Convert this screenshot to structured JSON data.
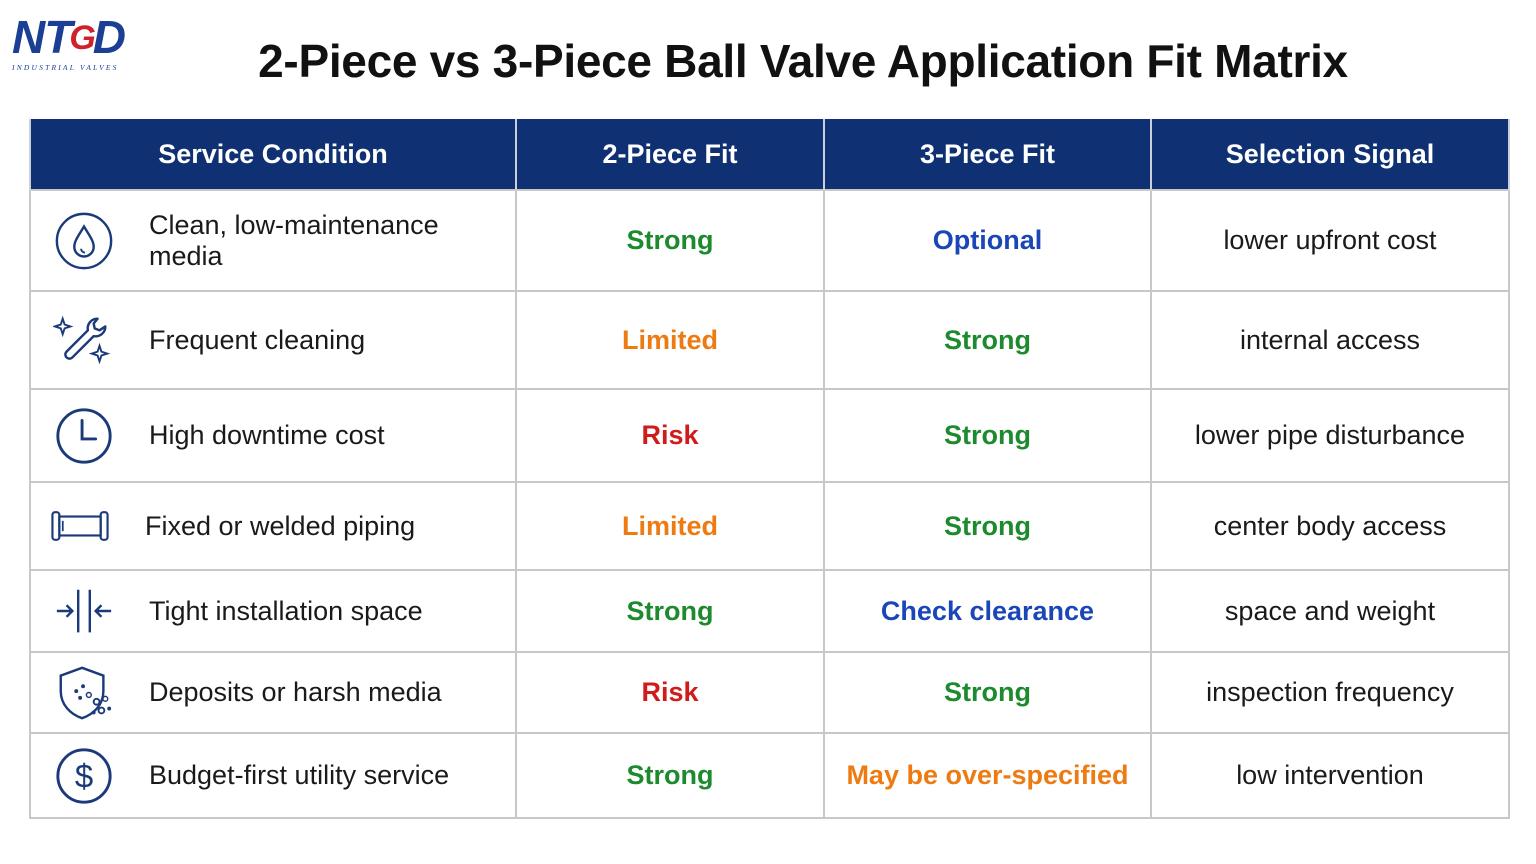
{
  "logo": {
    "mark_left": "NT",
    "mark_mid": "G",
    "mark_right": "D",
    "subtitle": "INDUSTRIAL VALVES"
  },
  "title": "2-Piece vs 3-Piece Ball Valve Application Fit Matrix",
  "headers": [
    "Service Condition",
    "2-Piece Fit",
    "3-Piece Fit",
    "Selection Signal"
  ],
  "colors": {
    "header_bg": "#0f3173",
    "strong": "#1e8a2e",
    "optional": "#1a46b8",
    "limited": "#ee7a12",
    "risk": "#d01b1b"
  },
  "rows": [
    {
      "icon": "droplet-icon",
      "condition": "Clean, low-maintenance media",
      "two_piece": "Strong",
      "three_piece": "Optional",
      "signal": "lower upfront cost"
    },
    {
      "icon": "wrench-sparkle-icon",
      "condition": "Frequent cleaning",
      "two_piece": "Limited",
      "three_piece": "Strong",
      "signal": "internal access"
    },
    {
      "icon": "clock-icon",
      "condition": "High downtime cost",
      "two_piece": "Risk",
      "three_piece": "Strong",
      "signal": "lower pipe disturbance"
    },
    {
      "icon": "pipe-icon",
      "condition": "Fixed or welded piping",
      "two_piece": "Limited",
      "three_piece": "Strong",
      "signal": "center body access"
    },
    {
      "icon": "compress-arrows-icon",
      "condition": "Tight installation space",
      "two_piece": "Strong",
      "three_piece": "Check clearance",
      "signal": "space and weight"
    },
    {
      "icon": "shield-particles-icon",
      "condition": "Deposits or harsh media",
      "two_piece": "Risk",
      "three_piece": "Strong",
      "signal": "inspection frequency"
    },
    {
      "icon": "dollar-icon",
      "condition": "Budget-first utility service",
      "two_piece": "Strong",
      "three_piece": "May be over-specified",
      "signal": "low intervention"
    }
  ]
}
